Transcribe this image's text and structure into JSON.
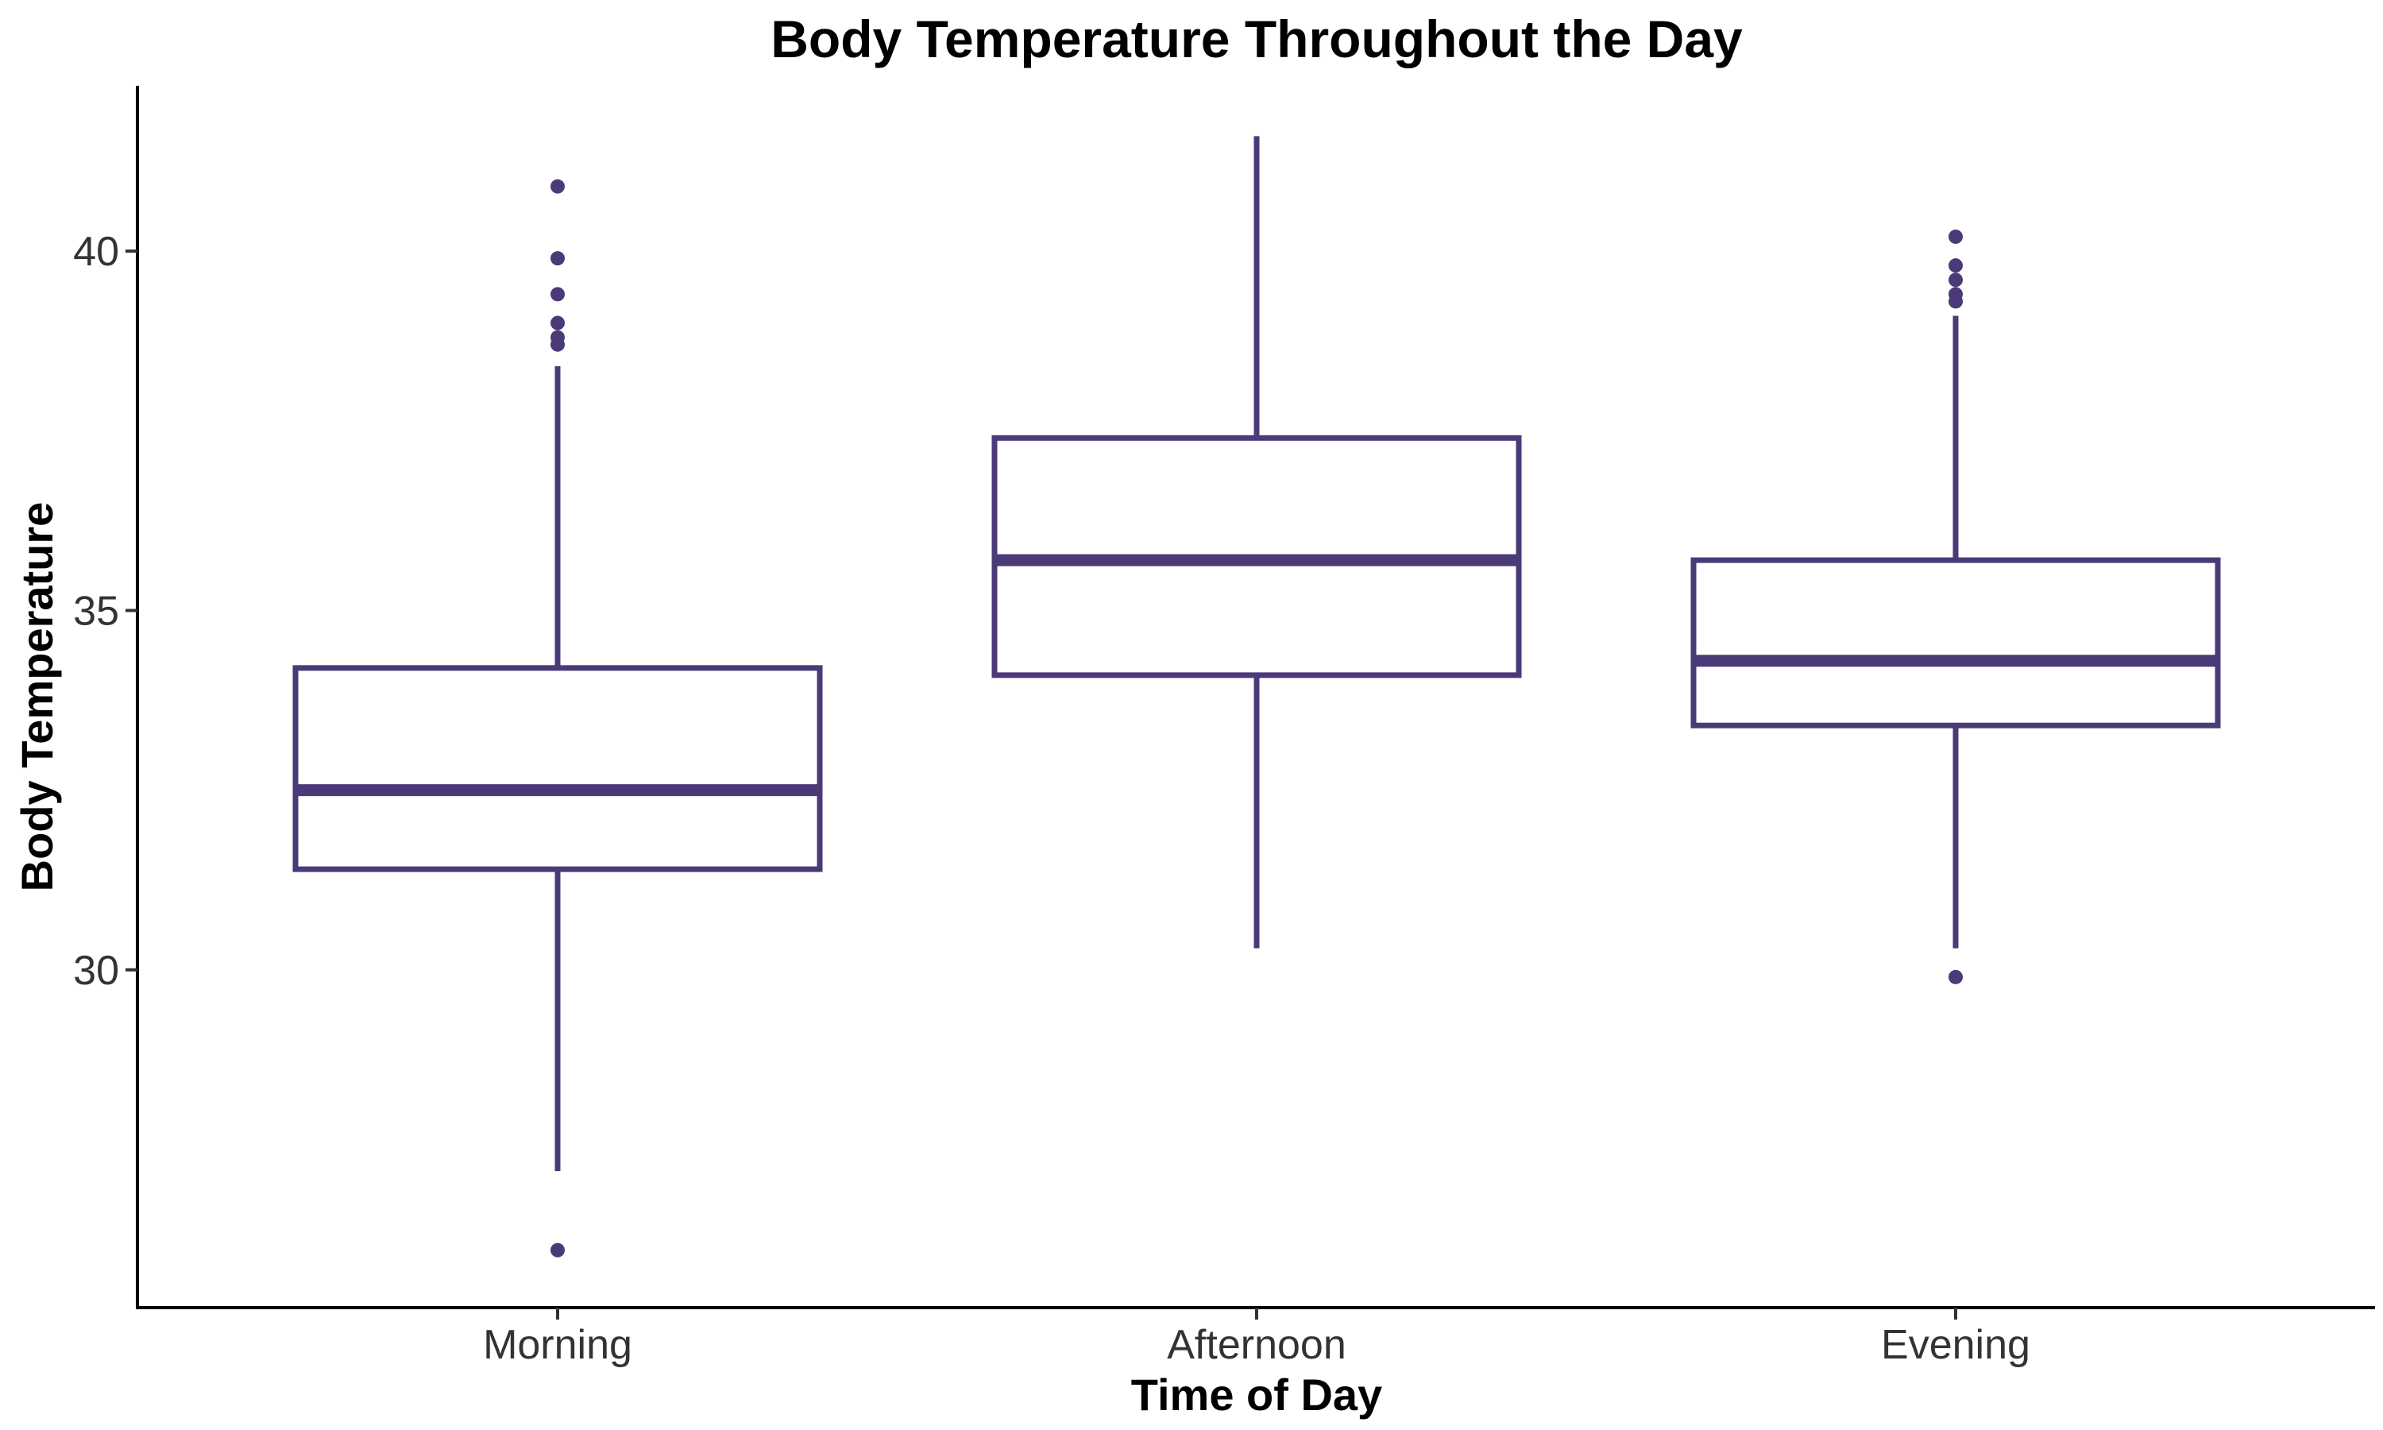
{
  "chart_data": {
    "type": "box",
    "title": "Body Temperature Throughout the Day",
    "xlabel": "Time of Day",
    "ylabel": "Body Temperature",
    "categories": [
      "Morning",
      "Afternoon",
      "Evening"
    ],
    "ylim": [
      25.3,
      42.3
    ],
    "yticks": [
      30,
      35,
      40
    ],
    "grid": false,
    "color": "#4B3A78",
    "boxes": [
      {
        "name": "Morning",
        "lower_whisker": 27.2,
        "q1": 31.4,
        "median": 32.5,
        "q3": 34.2,
        "upper_whisker": 38.4,
        "outliers": [
          26.1,
          38.7,
          38.8,
          39.0,
          39.4,
          39.9,
          40.9
        ]
      },
      {
        "name": "Afternoon",
        "lower_whisker": 30.3,
        "q1": 34.1,
        "median": 35.7,
        "q3": 37.4,
        "upper_whisker": 41.6,
        "outliers": []
      },
      {
        "name": "Evening",
        "lower_whisker": 30.3,
        "q1": 33.4,
        "median": 34.3,
        "q3": 35.7,
        "upper_whisker": 39.1,
        "outliers": [
          29.9,
          39.3,
          39.4,
          39.6,
          39.8,
          40.2
        ]
      }
    ]
  }
}
